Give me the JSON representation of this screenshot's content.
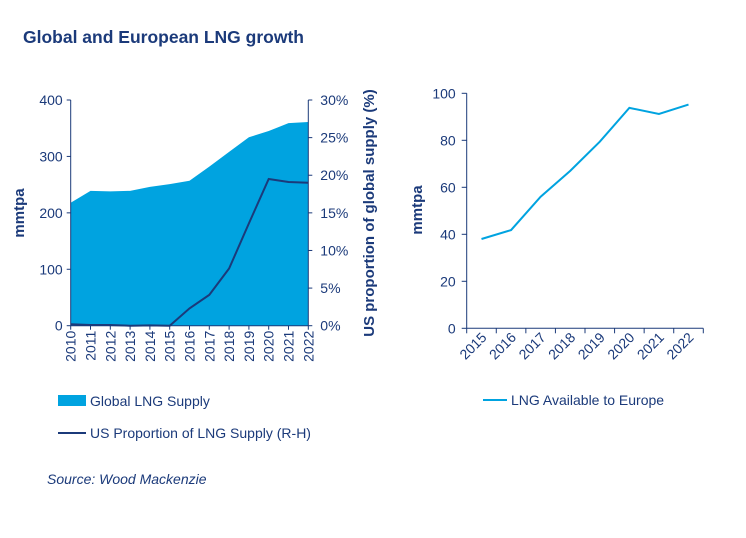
{
  "title": "Global and European LNG growth",
  "source": "Source: Wood Mackenzie",
  "colors": {
    "navy": "#1b3a7a",
    "cyan": "#00a3e0"
  },
  "chart_data": [
    {
      "type": "area+line",
      "categories": [
        "2010",
        "2011",
        "2012",
        "2013",
        "2014",
        "2015",
        "2016",
        "2017",
        "2018",
        "2019",
        "2020",
        "2021",
        "2022"
      ],
      "ylabel": "mmtpa",
      "ylim": [
        0,
        400
      ],
      "yticks": [
        "0",
        "100",
        "200",
        "300",
        "400"
      ],
      "y2label": "US proportion of global supply (%)",
      "y2lim": [
        0,
        30
      ],
      "y2ticks": [
        "0%",
        "5%",
        "10%",
        "15%",
        "20%",
        "25%",
        "30%"
      ],
      "series": [
        {
          "name": "Global LNG Supply",
          "type": "area",
          "axis": "left",
          "color": "#00a3e0",
          "values": [
            218,
            239,
            238,
            239,
            246,
            251,
            257,
            282,
            308,
            334,
            345,
            359,
            361
          ]
        },
        {
          "name": "US Proportion of LNG Supply (R-H)",
          "type": "line",
          "axis": "right",
          "color": "#1b3a7a",
          "values": [
            0.2,
            0.1,
            0.1,
            0,
            0.05,
            0,
            2.3,
            4.1,
            7.6,
            13.6,
            19.5,
            19.1,
            19.0
          ]
        }
      ],
      "legend": "bottom",
      "grid": false
    },
    {
      "type": "line",
      "categories": [
        "2015",
        "2016",
        "2017",
        "2018",
        "2019",
        "2020",
        "2021",
        "2022"
      ],
      "ylabel": "mmtpa",
      "ylim": [
        0,
        100
      ],
      "yticks": [
        "0",
        "20",
        "40",
        "60",
        "80",
        "100"
      ],
      "series": [
        {
          "name": "LNG Available to Europe",
          "color": "#00a3e0",
          "values": [
            38,
            41.8,
            56,
            67,
            79.4,
            93.8,
            91.2,
            95.2
          ]
        }
      ],
      "legend": "bottom",
      "grid": false
    }
  ]
}
